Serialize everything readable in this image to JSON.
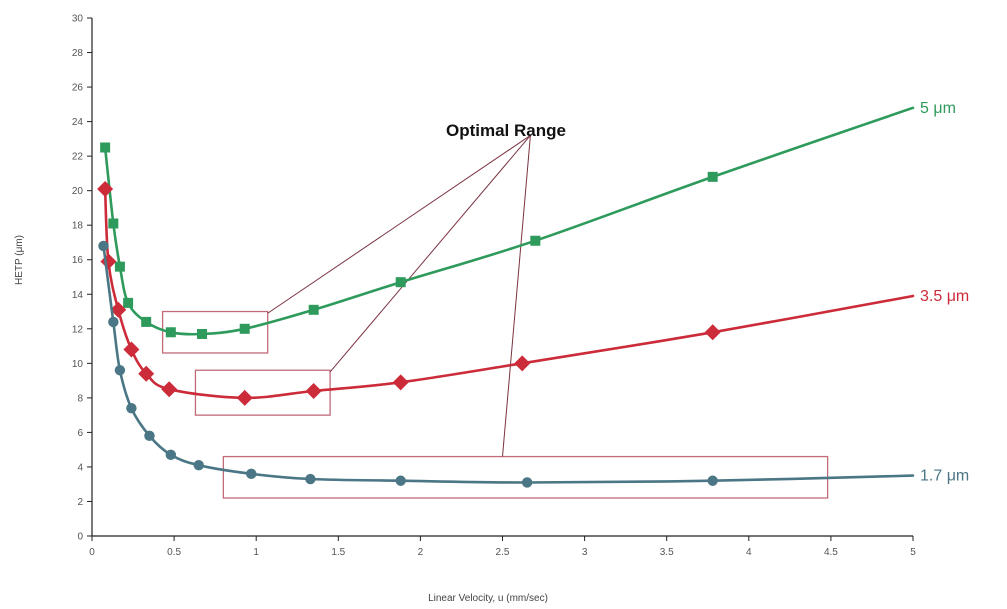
{
  "chart_data": {
    "type": "line",
    "title": "",
    "xlabel": "Linear Velocity, u (mm/sec)",
    "ylabel": "HETP (μm)",
    "xlim": [
      0,
      5
    ],
    "ylim": [
      0,
      30
    ],
    "xticks": [
      0,
      0.5,
      1,
      1.5,
      2,
      2.5,
      3,
      3.5,
      4,
      4.5,
      5
    ],
    "xtick_labels": [
      "0",
      "0.5",
      "1",
      "1.5",
      "2",
      "2.5",
      "3",
      "3.5",
      "4",
      "4.5",
      "5"
    ],
    "yticks": [
      0,
      2,
      4,
      6,
      8,
      10,
      12,
      14,
      16,
      18,
      20,
      22,
      24,
      26,
      28,
      30
    ],
    "ytick_labels": [
      "0",
      "2",
      "4",
      "6",
      "8",
      "10",
      "12",
      "14",
      "16",
      "18",
      "20",
      "22",
      "24",
      "26",
      "28",
      "30"
    ],
    "grid": false,
    "annotation": "Optimal Range",
    "series": [
      {
        "name": "5 μm",
        "color": "#2e9a5b",
        "marker": "square",
        "points": [
          [
            0.08,
            22.5
          ],
          [
            0.13,
            18.1
          ],
          [
            0.17,
            15.6
          ],
          [
            0.22,
            13.5
          ],
          [
            0.33,
            12.4
          ],
          [
            0.48,
            11.8
          ],
          [
            0.67,
            11.7
          ],
          [
            0.93,
            12.0
          ],
          [
            1.35,
            13.1
          ],
          [
            1.88,
            14.7
          ],
          [
            2.7,
            17.1
          ],
          [
            3.78,
            20.8
          ]
        ],
        "curve_end": [
          5.0,
          24.8
        ]
      },
      {
        "name": "3.5 μm",
        "color": "#cc2b3a",
        "marker": "diamond",
        "points": [
          [
            0.08,
            20.1
          ],
          [
            0.1,
            15.9
          ],
          [
            0.16,
            13.1
          ],
          [
            0.24,
            10.8
          ],
          [
            0.33,
            9.4
          ],
          [
            0.47,
            8.5
          ],
          [
            0.93,
            8.0
          ],
          [
            1.35,
            8.4
          ],
          [
            1.88,
            8.9
          ],
          [
            2.62,
            10.0
          ],
          [
            3.78,
            11.8
          ]
        ],
        "curve_end": [
          5.0,
          13.9
        ]
      },
      {
        "name": "1.7 μm",
        "color": "#4a7685",
        "marker": "circle",
        "points": [
          [
            0.07,
            16.8
          ],
          [
            0.13,
            12.4
          ],
          [
            0.17,
            9.6
          ],
          [
            0.24,
            7.4
          ],
          [
            0.35,
            5.8
          ],
          [
            0.48,
            4.7
          ],
          [
            0.65,
            4.1
          ],
          [
            0.97,
            3.6
          ],
          [
            1.33,
            3.3
          ],
          [
            1.88,
            3.2
          ],
          [
            2.65,
            3.1
          ],
          [
            3.78,
            3.2
          ]
        ],
        "curve_end": [
          5.0,
          3.5
        ]
      }
    ],
    "optimal_ranges": [
      {
        "series": "5 μm",
        "x": [
          0.43,
          1.07
        ],
        "y": [
          10.6,
          13.0
        ]
      },
      {
        "series": "3.5 μm",
        "x": [
          0.63,
          1.45
        ],
        "y": [
          7.0,
          9.6
        ]
      },
      {
        "series": "1.7 μm",
        "x": [
          0.8,
          4.48
        ],
        "y": [
          2.2,
          4.6
        ]
      }
    ],
    "callout_origin": [
      2.67,
      23.2
    ],
    "callout_targets": [
      [
        1.07,
        12.9
      ],
      [
        1.45,
        9.5
      ],
      [
        2.5,
        4.6
      ]
    ]
  }
}
